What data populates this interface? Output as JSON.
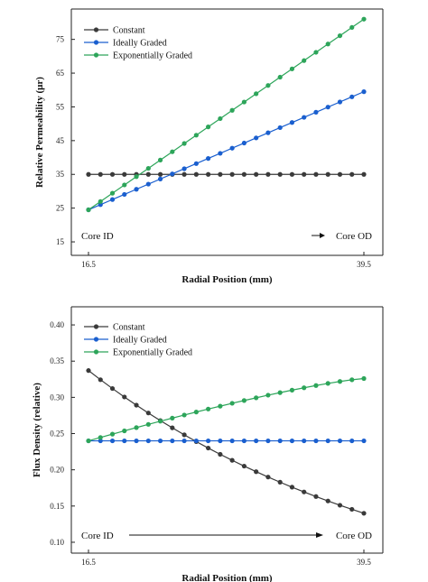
{
  "colors": {
    "constant": "#3a3a3a",
    "ideally_graded": "#1a5fcf",
    "exponentially_graded": "#2da55a",
    "axis": "#222222"
  },
  "chart_data": [
    {
      "type": "line",
      "title": "",
      "xlabel": "Radial Position (mm)",
      "ylabel": "Relative Permeability (μr)",
      "x_ticks": [
        "16.5",
        "39.5"
      ],
      "xlim": [
        16.5,
        39.5
      ],
      "ylim": [
        11,
        84
      ],
      "y_ticks": [
        15,
        25,
        35,
        45,
        55,
        65,
        75
      ],
      "grid": false,
      "legend_position": "top-left",
      "annotations": {
        "left": "Core ID",
        "right": "Core OD",
        "arrow": "►"
      },
      "points_per_series": 24,
      "series": [
        {
          "name": "Constant",
          "color_key": "constant",
          "start": 35,
          "end": 35,
          "shape": "flat"
        },
        {
          "name": "Ideally Graded",
          "color_key": "ideally_graded",
          "start": 24.5,
          "end": 59.5,
          "shape": "linear"
        },
        {
          "name": "Exponentially Graded",
          "color_key": "exponentially_graded",
          "start": 24.5,
          "end": 81,
          "shape": "linear"
        }
      ]
    },
    {
      "type": "line",
      "title": "",
      "xlabel": "Radial Position (mm)",
      "ylabel": "Flux Density (relative)",
      "x_ticks": [
        "16.5",
        "39.5"
      ],
      "xlim": [
        16.5,
        39.5
      ],
      "ylim": [
        0.085,
        0.425
      ],
      "y_ticks": [
        "0.10",
        "0.15",
        "0.20",
        "0.25",
        "0.30",
        "0.35",
        "0.40"
      ],
      "grid": false,
      "legend_position": "top-left",
      "annotations": {
        "left": "Core ID",
        "right": "Core OD",
        "arrow": "→"
      },
      "points_per_series": 24,
      "series": [
        {
          "name": "Constant",
          "color_key": "constant",
          "start": 0.337,
          "end": 0.14,
          "shape": "decay"
        },
        {
          "name": "Ideally Graded",
          "color_key": "ideally_graded",
          "start": 0.24,
          "end": 0.24,
          "shape": "flat"
        },
        {
          "name": "Exponentially Graded",
          "color_key": "exponentially_graded",
          "start": 0.24,
          "end": 0.326,
          "shape": "convex"
        }
      ]
    }
  ]
}
